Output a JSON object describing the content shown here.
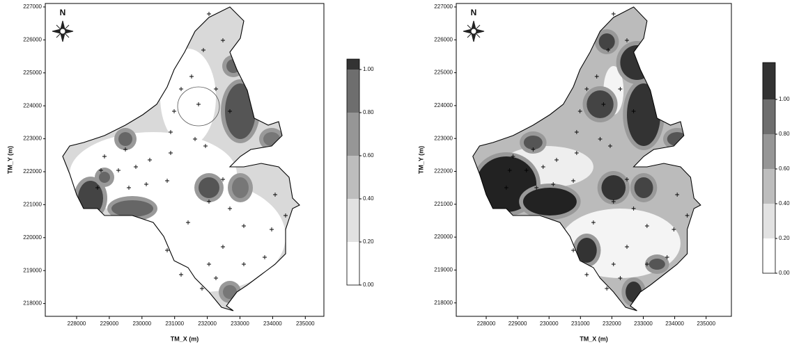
{
  "maps": [
    {
      "north": "N",
      "x_axis_label": "TM_X (m)",
      "y_axis_label": "TM_Y (m)",
      "xticks": [
        228000,
        229000,
        230000,
        231000,
        232000,
        233000,
        234000,
        235000
      ],
      "yticks": [
        227000,
        226000,
        225000,
        224000,
        223000,
        222000,
        221000,
        220000,
        219000,
        218000
      ],
      "colorbar_ticks": [
        "0.00",
        "0.20",
        "0.40",
        "0.60",
        "0.80",
        "1.00"
      ]
    },
    {
      "north": "N",
      "x_axis_label": "TM_X (m)",
      "y_axis_label": "TM_Y (m)",
      "xticks": [
        228000,
        229000,
        230000,
        231000,
        232000,
        233000,
        234000,
        235000
      ],
      "yticks": [
        227000,
        226000,
        225000,
        224000,
        223000,
        222000,
        221000,
        220000,
        219000,
        218000
      ],
      "colorbar_ticks": [
        "0.00",
        "0.20",
        "0.40",
        "0.60",
        "0.80",
        "1.00"
      ]
    }
  ]
}
